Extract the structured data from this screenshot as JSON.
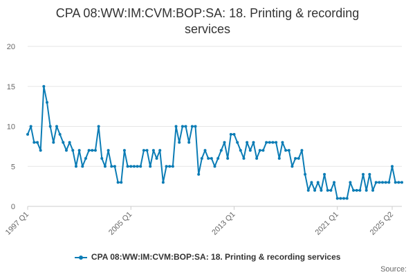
{
  "title_line1": "CPA 08:WW:IM:CVM:BOP:SA: 18. Printing & recording",
  "title_line2": "services",
  "legend_label": "CPA 08:WW:IM:CVM:BOP:SA: 18. Printing & recording services",
  "source_label": "Source:",
  "series_color": "#0b7cb5",
  "chart_data": {
    "type": "line",
    "title": "CPA 08:WW:IM:CVM:BOP:SA: 18. Printing & recording services",
    "xlabel": "",
    "ylabel": "",
    "ylim": [
      0,
      20
    ],
    "yticks": [
      0,
      5,
      10,
      15,
      20
    ],
    "grid": true,
    "legend_position": "bottom",
    "x_start": "1997 Q1",
    "xtick_labels": [
      {
        "label": "1997 Q1",
        "index": 0
      },
      {
        "label": "2005 Q1",
        "index": 32
      },
      {
        "label": "2013 Q1",
        "index": 64
      },
      {
        "label": "2021 Q1",
        "index": 96
      },
      {
        "label": "2025 Q2",
        "index": 113
      }
    ],
    "series": [
      {
        "name": "CPA 08:WW:IM:CVM:BOP:SA: 18. Printing & recording services",
        "values": [
          9,
          10,
          8,
          8,
          7,
          15,
          13,
          10,
          8,
          10,
          9,
          8,
          7,
          8,
          7,
          5,
          7,
          5,
          6,
          7,
          7,
          7,
          10,
          6,
          5,
          7,
          5,
          5,
          3,
          3,
          7,
          5,
          5,
          5,
          5,
          5,
          7,
          7,
          5,
          7,
          6,
          7,
          3,
          5,
          5,
          5,
          10,
          8,
          10,
          10,
          8,
          10,
          10,
          4,
          6,
          7,
          6,
          6,
          5,
          6,
          7,
          8,
          6,
          9,
          9,
          8,
          7,
          6,
          8,
          7,
          8,
          6,
          7,
          7,
          8,
          8,
          8,
          8,
          6,
          8,
          7,
          7,
          5,
          6,
          6,
          7,
          4,
          2,
          3,
          2,
          3,
          2,
          4,
          2,
          2,
          3,
          1,
          1,
          1,
          1,
          3,
          2,
          2,
          2,
          4,
          2,
          4,
          2,
          3,
          3,
          3,
          3,
          3,
          5,
          3,
          3,
          3
        ]
      }
    ]
  }
}
